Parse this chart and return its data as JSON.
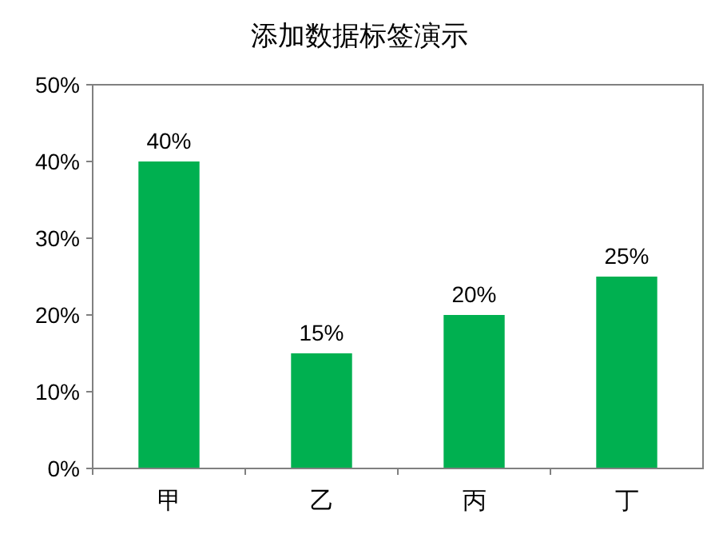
{
  "chart_data": {
    "type": "bar",
    "title": "添加数据标签演示",
    "categories": [
      "甲",
      "乙",
      "丙",
      "丁"
    ],
    "values": [
      40,
      15,
      20,
      25
    ],
    "value_labels": [
      "40%",
      "15%",
      "20%",
      "25%"
    ],
    "color": "#00b050",
    "ylim": [
      0,
      50
    ],
    "yticks": [
      {
        "value": 0,
        "label": "0%"
      },
      {
        "value": 10,
        "label": "10%"
      },
      {
        "value": 20,
        "label": "20%"
      },
      {
        "value": 30,
        "label": "30%"
      },
      {
        "value": 40,
        "label": "40%"
      },
      {
        "value": 50,
        "label": "50%"
      }
    ],
    "grid": false
  }
}
